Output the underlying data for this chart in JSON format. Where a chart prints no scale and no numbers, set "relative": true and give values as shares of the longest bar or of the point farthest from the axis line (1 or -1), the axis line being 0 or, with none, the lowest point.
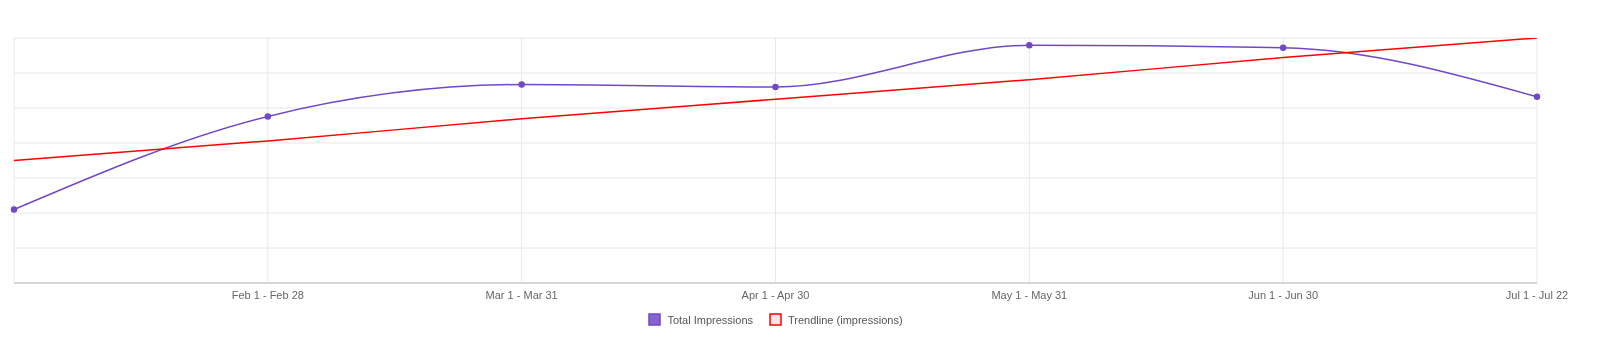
{
  "chart_data": {
    "type": "line",
    "relative": true,
    "categories": [
      null,
      "Feb 1 - Feb 28",
      "Mar 1 - Mar 31",
      "Apr 1 - Apr 30",
      "May 1 - May 31",
      "Jun 1 - Jun 30",
      "Jul 1 - Jul 22"
    ],
    "series": [
      {
        "name": "Total Impressions",
        "color": "#7048c8",
        "marker": "circle",
        "values": [
          0.3,
          0.68,
          0.81,
          0.8,
          0.97,
          0.96,
          0.76
        ]
      },
      {
        "name": "Trendline (impressions)",
        "color": "#ff0000",
        "marker": "none",
        "values": [
          0.5,
          0.58,
          0.67,
          0.75,
          0.83,
          0.92,
          1.0
        ]
      }
    ],
    "grid": true,
    "legend": "bottom"
  }
}
